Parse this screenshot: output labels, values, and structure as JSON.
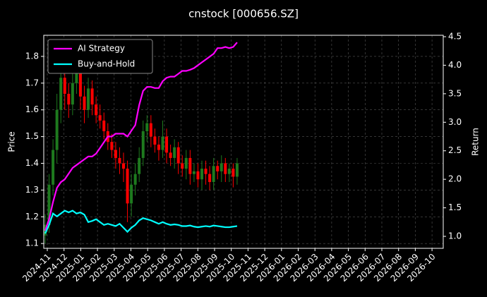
{
  "chart_data": {
    "type": "candlestick",
    "title": "cnstock [000656.SZ]",
    "ylabel": "Price",
    "y2label": "Return",
    "xticks": [
      "2024-11",
      "2024-12",
      "2025-01",
      "2025-02",
      "2025-03",
      "2025-04",
      "2025-05",
      "2025-06",
      "2025-07",
      "2025-08",
      "2025-09",
      "2025-10",
      "2025-11",
      "2025-12",
      "2026-01",
      "2026-02",
      "2026-03",
      "2026-04",
      "2026-05",
      "2026-06",
      "2026-07",
      "2026-08",
      "2026-09",
      "2026-10"
    ],
    "open": [
      1.13,
      1.17,
      1.32,
      1.45,
      1.6,
      1.72,
      1.66,
      1.62,
      1.7,
      1.74,
      1.65,
      1.6,
      1.68,
      1.62,
      1.58,
      1.56,
      1.52,
      1.48,
      1.45,
      1.42,
      1.4,
      1.38,
      1.25,
      1.32,
      1.36,
      1.42,
      1.52,
      1.55,
      1.5,
      1.47,
      1.45,
      1.5,
      1.44,
      1.42,
      1.46,
      1.4,
      1.38,
      1.42,
      1.36,
      1.37,
      1.34,
      1.38,
      1.36,
      1.33,
      1.39,
      1.37,
      1.4,
      1.36,
      1.38,
      1.35
    ],
    "high": [
      1.21,
      1.36,
      1.49,
      1.66,
      1.78,
      1.8,
      1.7,
      1.74,
      1.79,
      1.78,
      1.69,
      1.72,
      1.71,
      1.65,
      1.62,
      1.59,
      1.55,
      1.51,
      1.48,
      1.46,
      1.44,
      1.41,
      1.36,
      1.4,
      1.46,
      1.56,
      1.58,
      1.58,
      1.53,
      1.5,
      1.56,
      1.53,
      1.47,
      1.49,
      1.48,
      1.43,
      1.45,
      1.45,
      1.4,
      1.4,
      1.41,
      1.41,
      1.39,
      1.42,
      1.41,
      1.43,
      1.42,
      1.4,
      1.4,
      1.42
    ],
    "low": [
      1.1,
      1.14,
      1.28,
      1.4,
      1.55,
      1.6,
      1.57,
      1.58,
      1.66,
      1.6,
      1.55,
      1.57,
      1.58,
      1.55,
      1.53,
      1.49,
      1.45,
      1.42,
      1.38,
      1.36,
      1.33,
      1.18,
      1.2,
      1.28,
      1.33,
      1.39,
      1.48,
      1.46,
      1.44,
      1.41,
      1.42,
      1.4,
      1.39,
      1.38,
      1.36,
      1.35,
      1.34,
      1.32,
      1.33,
      1.31,
      1.3,
      1.32,
      1.3,
      1.3,
      1.34,
      1.33,
      1.33,
      1.33,
      1.31,
      1.32
    ],
    "close": [
      1.17,
      1.32,
      1.45,
      1.6,
      1.72,
      1.66,
      1.62,
      1.7,
      1.74,
      1.65,
      1.6,
      1.68,
      1.62,
      1.58,
      1.56,
      1.52,
      1.48,
      1.45,
      1.42,
      1.4,
      1.38,
      1.25,
      1.32,
      1.36,
      1.42,
      1.52,
      1.55,
      1.5,
      1.47,
      1.45,
      1.5,
      1.44,
      1.42,
      1.46,
      1.4,
      1.38,
      1.42,
      1.36,
      1.37,
      1.34,
      1.38,
      1.36,
      1.33,
      1.39,
      1.37,
      1.4,
      1.36,
      1.38,
      1.35,
      1.4
    ],
    "up_color": "#1e7a1e",
    "down_color": "#ff0000",
    "ylim": [
      1.082,
      1.879
    ],
    "yticks": [
      1.1,
      1.2,
      1.3,
      1.4,
      1.5,
      1.6,
      1.7,
      1.8
    ],
    "y2lim": [
      0.79,
      4.525
    ],
    "y2ticks": [
      {
        "value": 1,
        "label": "1.0"
      },
      1.5,
      {
        "value": 2,
        "label": "2.0"
      },
      2.5,
      {
        "value": 3,
        "label": "3.0"
      },
      3.5,
      {
        "value": 4,
        "label": "4.0"
      },
      4.5
    ],
    "grid": true,
    "legend": "upper left",
    "series": [
      {
        "name": "AI Strategy",
        "color": "#ff00ff",
        "axis": "y2",
        "values": [
          1.1,
          1.3,
          1.6,
          1.85,
          1.95,
          2.0,
          2.1,
          2.2,
          2.25,
          2.3,
          2.35,
          2.4,
          2.4,
          2.45,
          2.55,
          2.65,
          2.75,
          2.75,
          2.8,
          2.8,
          2.8,
          2.75,
          2.85,
          2.95,
          3.3,
          3.55,
          3.62,
          3.62,
          3.6,
          3.6,
          3.72,
          3.78,
          3.8,
          3.8,
          3.85,
          3.9,
          3.9,
          3.92,
          3.95,
          4.0,
          4.05,
          4.1,
          4.15,
          4.2,
          4.3,
          4.3,
          4.32,
          4.3,
          4.32,
          4.4
        ]
      },
      {
        "name": "Buy-and-Hold",
        "color": "#00ffff",
        "axis": "y2",
        "values": [
          1.05,
          1.2,
          1.4,
          1.35,
          1.4,
          1.45,
          1.42,
          1.45,
          1.4,
          1.42,
          1.38,
          1.25,
          1.27,
          1.3,
          1.25,
          1.2,
          1.22,
          1.2,
          1.18,
          1.22,
          1.15,
          1.08,
          1.15,
          1.2,
          1.28,
          1.32,
          1.3,
          1.28,
          1.25,
          1.22,
          1.25,
          1.22,
          1.2,
          1.21,
          1.2,
          1.18,
          1.18,
          1.19,
          1.17,
          1.16,
          1.17,
          1.18,
          1.17,
          1.19,
          1.18,
          1.17,
          1.16,
          1.16,
          1.17,
          1.18
        ]
      }
    ]
  }
}
